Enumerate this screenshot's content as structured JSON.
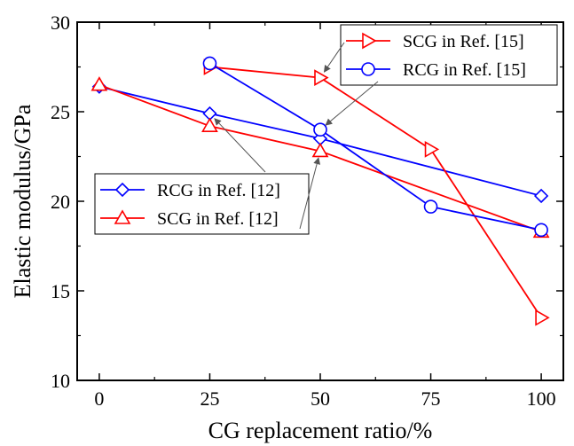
{
  "chart_data": {
    "type": "line",
    "title": "",
    "xlabel": "CG replacement ratio/%",
    "ylabel": "Elastic modulus/GPa",
    "xlim": [
      -5,
      105
    ],
    "ylim": [
      10,
      30
    ],
    "xticks": [
      0,
      25,
      50,
      75,
      100
    ],
    "yticks": [
      10,
      15,
      20,
      25,
      30
    ],
    "grid": false,
    "series": [
      {
        "name": "RCG in Ref. [12]",
        "color": "#0000ff",
        "marker": "diamond",
        "x": [
          0,
          25,
          50,
          100
        ],
        "y": [
          26.4,
          24.9,
          23.5,
          20.3
        ]
      },
      {
        "name": "SCG in Ref. [12]",
        "color": "#ff0000",
        "marker": "triangle-up",
        "x": [
          0,
          25,
          50,
          100
        ],
        "y": [
          26.5,
          24.2,
          22.8,
          18.3
        ]
      },
      {
        "name": "SCG in Ref. [15]",
        "color": "#ff0000",
        "marker": "triangle-right",
        "x": [
          25,
          50,
          75,
          100
        ],
        "y": [
          27.5,
          26.9,
          22.9,
          13.5
        ]
      },
      {
        "name": "RCG in Ref. [15]",
        "color": "#0000ff",
        "marker": "circle",
        "x": [
          25,
          50,
          75,
          100
        ],
        "y": [
          27.7,
          24.0,
          19.7,
          18.4
        ]
      }
    ],
    "legends": [
      {
        "placement": "top-right",
        "entries": [
          "SCG in Ref. [15]",
          "RCG in Ref. [15]"
        ]
      },
      {
        "placement": "middle-left",
        "entries": [
          "RCG in Ref. [12]",
          "SCG in Ref. [12]"
        ]
      }
    ],
    "annotations": [
      {
        "type": "arrow",
        "from_legend": "top-right",
        "entry": "SCG in Ref. [15]",
        "to": {
          "x": 50,
          "y": 26.9
        }
      },
      {
        "type": "arrow",
        "from_legend": "top-right",
        "entry": "RCG in Ref. [15]",
        "to": {
          "x": 50,
          "y": 24.0
        }
      },
      {
        "type": "arrow",
        "from_legend": "middle-left",
        "entry": "RCG in Ref. [12]",
        "to": {
          "x": 25,
          "y": 24.9
        }
      },
      {
        "type": "arrow",
        "from_legend": "middle-left",
        "entry": "SCG in Ref. [12]",
        "to": {
          "x": 50,
          "y": 22.8
        }
      }
    ]
  }
}
